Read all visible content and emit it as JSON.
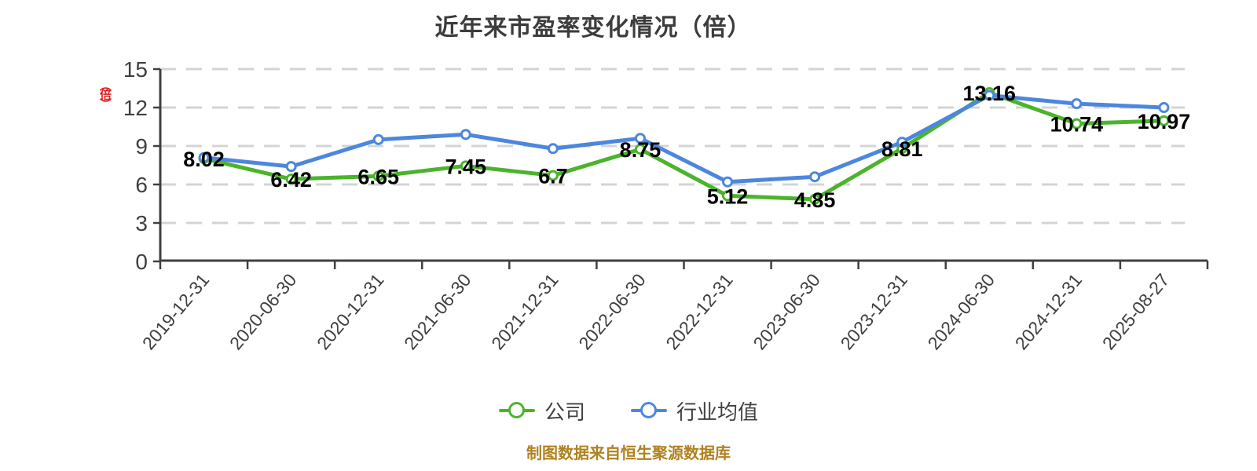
{
  "title": "近年来市盈率变化情况（倍）",
  "y_axis_unit": "（倍）",
  "footer": "制图数据来自恒生聚源数据库",
  "legend": {
    "items": [
      {
        "label": "公司"
      },
      {
        "label": "行业均值"
      }
    ]
  },
  "colors": {
    "company": "#4BB42C",
    "industry": "#4D87DD",
    "grid": "#D4D4D4",
    "axis": "#404040",
    "data_label": "#000000",
    "marker_fill": "#FFFFFF",
    "title_text": "#3C3C3C",
    "footer_text": "#B08221",
    "unit_text": "#E02020"
  },
  "chart_data": {
    "type": "line",
    "title": "近年来市盈率变化情况（倍）",
    "categories": [
      "2019-12-31",
      "2020-06-30",
      "2020-12-31",
      "2021-06-30",
      "2021-12-31",
      "2022-06-30",
      "2022-12-31",
      "2023-06-30",
      "2023-12-31",
      "2024-06-30",
      "2024-12-31",
      "2025-08-27"
    ],
    "series": [
      {
        "name": "公司",
        "color": "#4BB42C",
        "values": [
          8.02,
          6.42,
          6.65,
          7.45,
          6.7,
          8.75,
          5.12,
          4.85,
          8.81,
          13.16,
          10.74,
          10.97
        ],
        "data_labels": true
      },
      {
        "name": "行业均值",
        "color": "#4D87DD",
        "values": [
          8.1,
          7.4,
          9.5,
          9.9,
          8.8,
          9.6,
          6.2,
          6.6,
          9.3,
          12.95,
          12.3,
          12.0
        ],
        "data_labels": false
      }
    ],
    "ylim": [
      0,
      15
    ],
    "yticks": [
      0,
      3,
      6,
      9,
      12,
      15
    ],
    "grid": "horizontal-dashed",
    "legend_position": "bottom",
    "x_label_rotation": -50
  }
}
